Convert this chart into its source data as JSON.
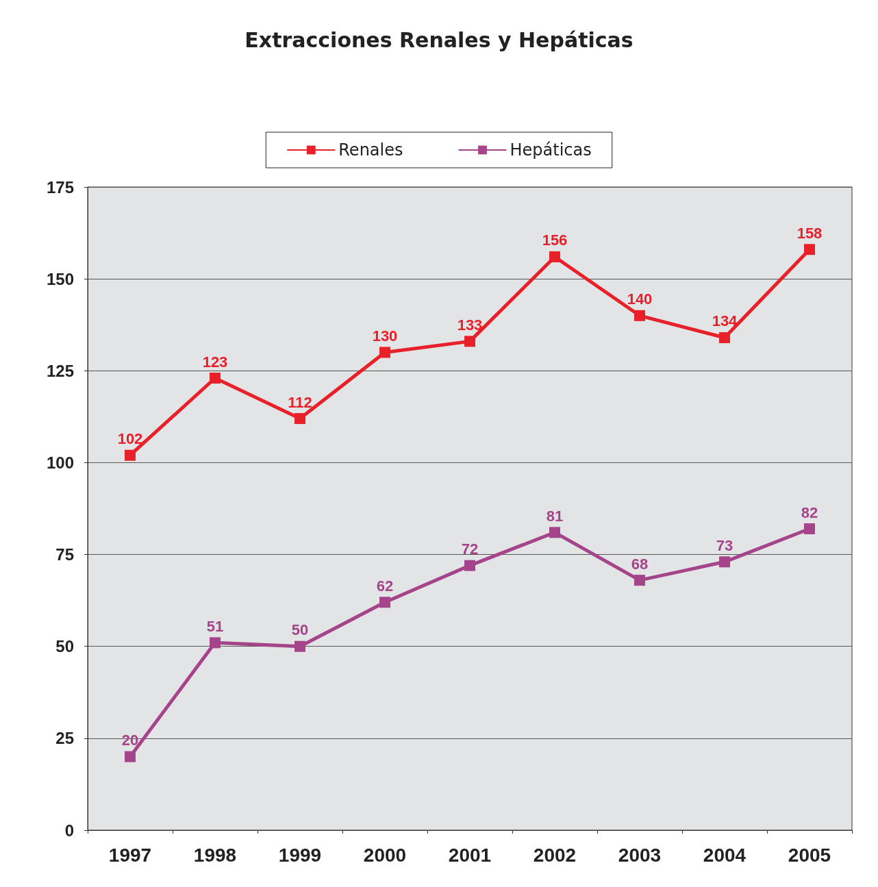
{
  "chart_data": {
    "type": "line",
    "title": "Extracciones Renales y Hepáticas",
    "categories": [
      "1997",
      "1998",
      "1999",
      "2000",
      "2001",
      "2002",
      "2003",
      "2004",
      "2005"
    ],
    "series": [
      {
        "name": "Renales",
        "color": "#e8202a",
        "values": [
          102,
          123,
          112,
          130,
          133,
          156,
          140,
          134,
          158
        ]
      },
      {
        "name": "Hepáticas",
        "color": "#a5448a",
        "values": [
          20,
          51,
          50,
          62,
          72,
          81,
          68,
          73,
          82
        ]
      }
    ],
    "ylim": [
      0,
      175
    ],
    "yticks": [
      0,
      25,
      50,
      75,
      100,
      125,
      150,
      175
    ],
    "grid": "y",
    "legend": "top",
    "marker": "square",
    "line_style": "solid",
    "data_labels": true
  }
}
